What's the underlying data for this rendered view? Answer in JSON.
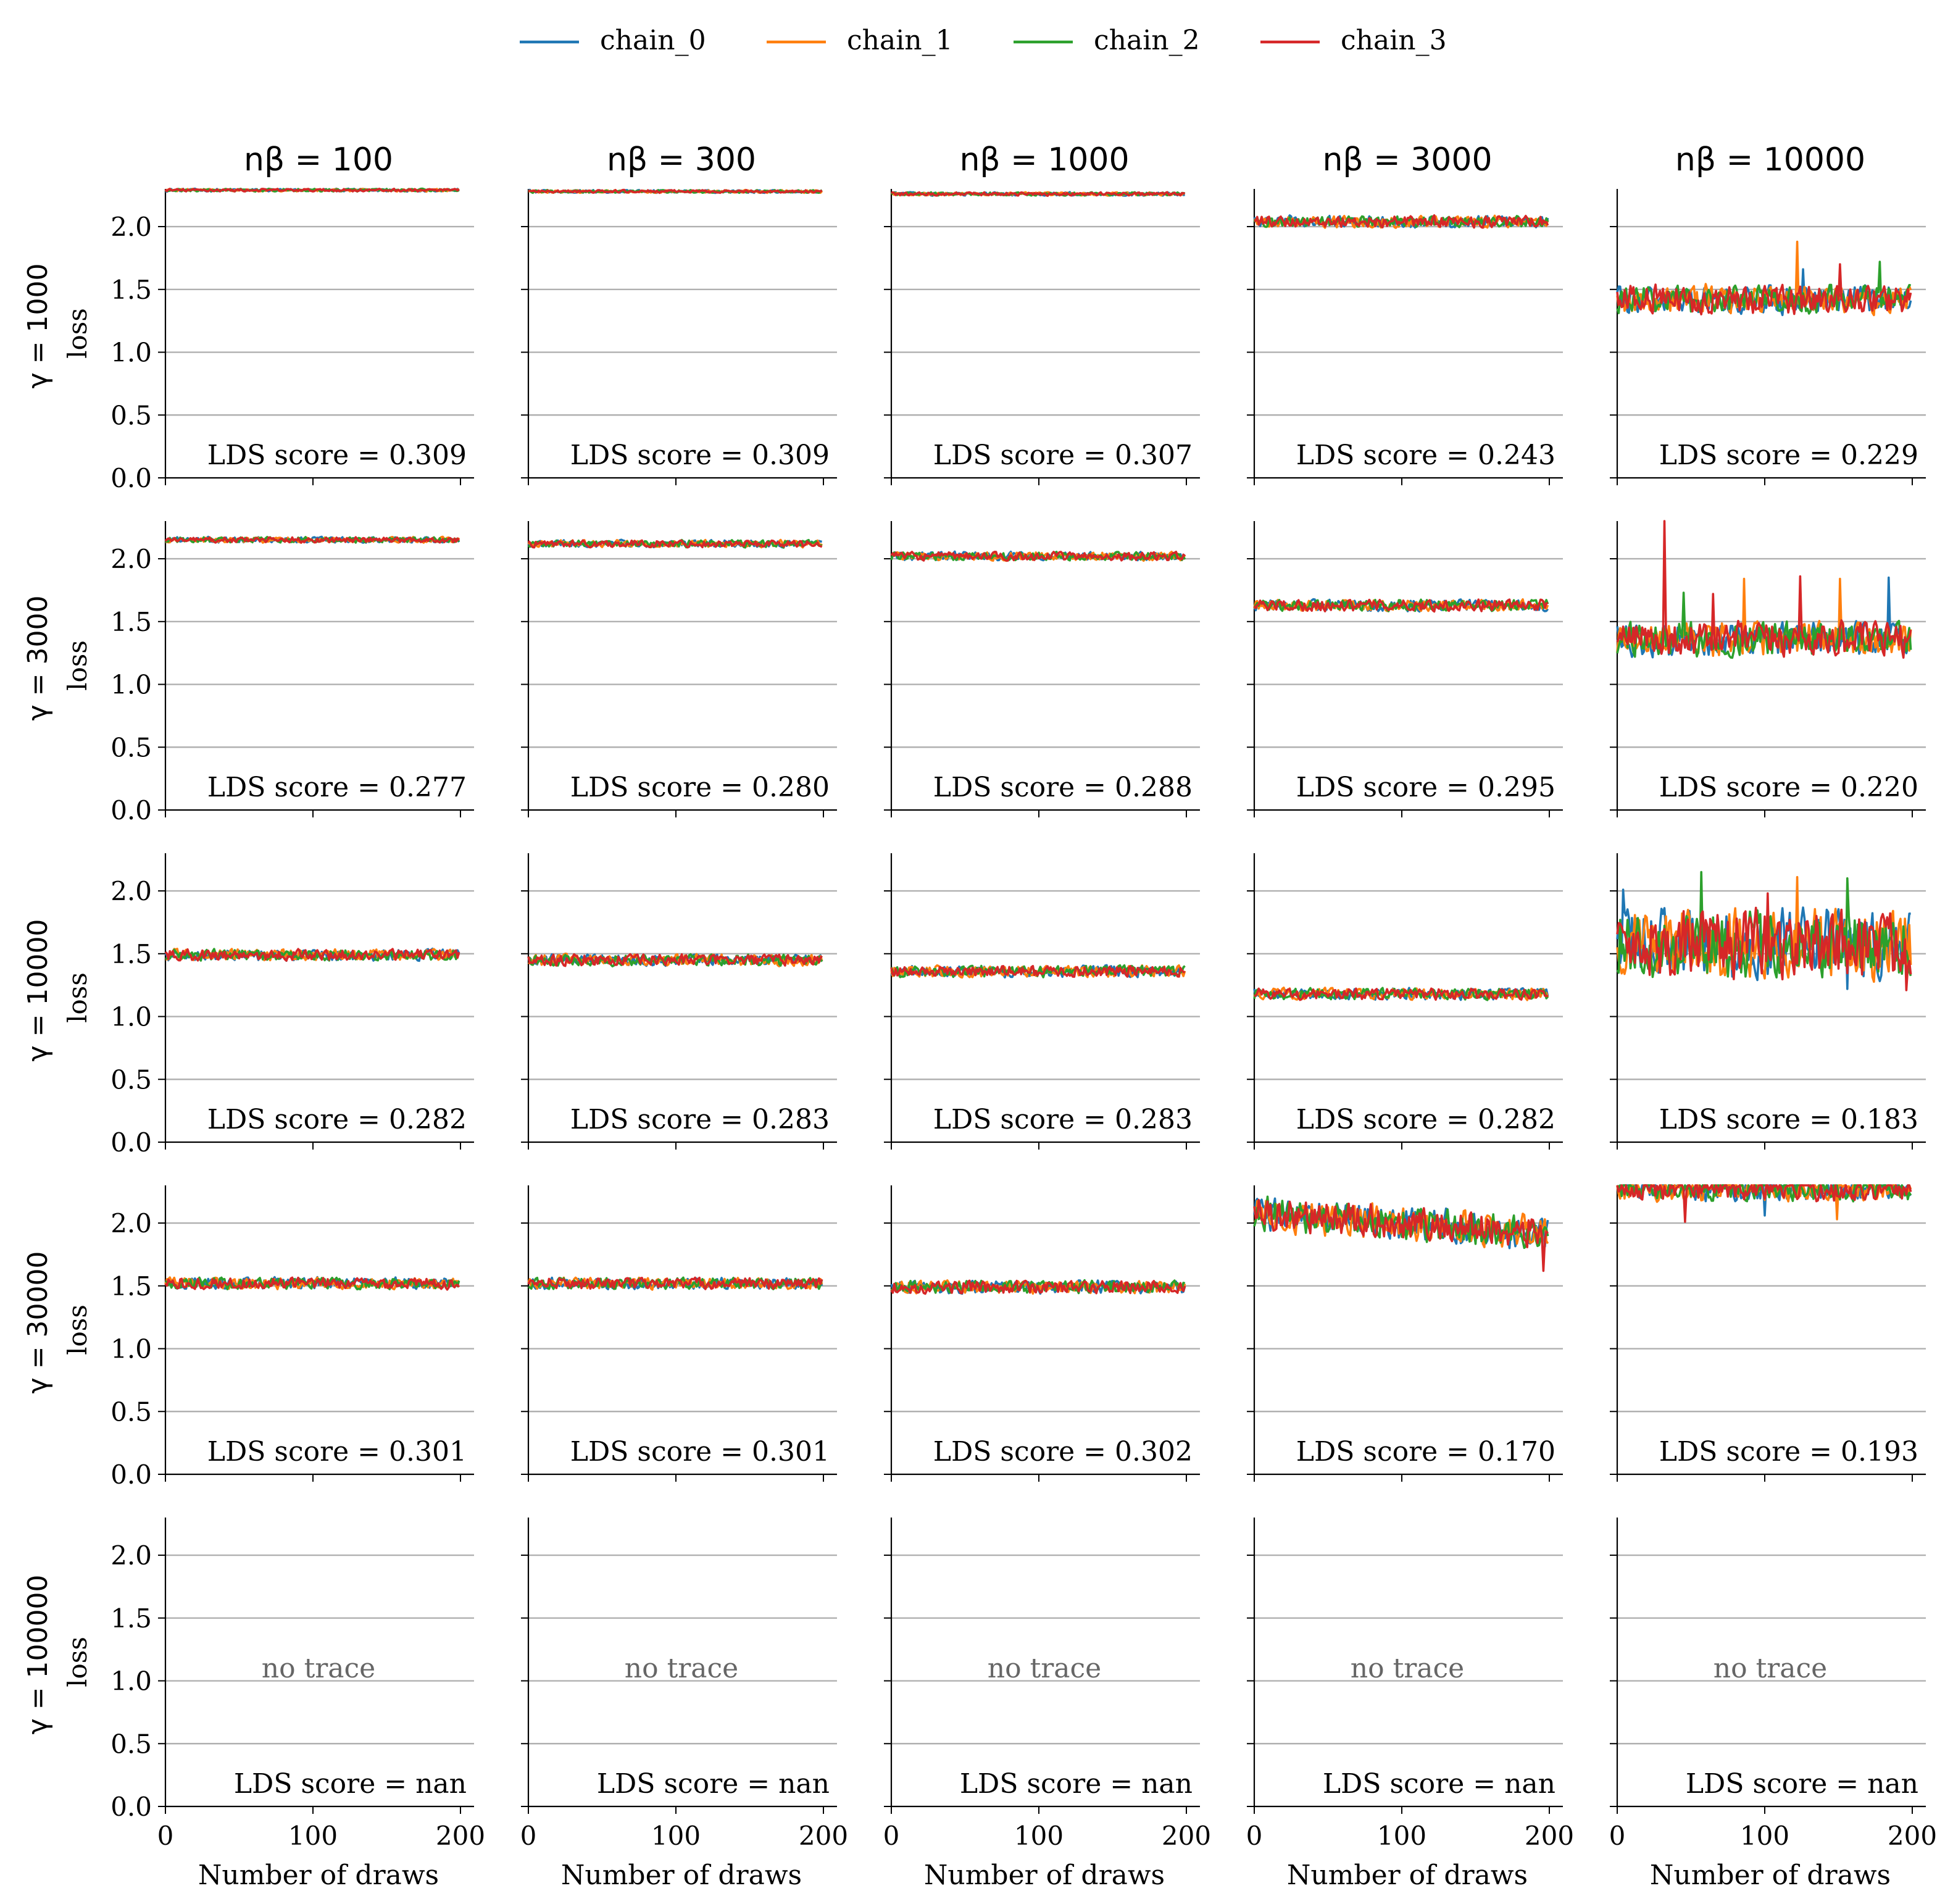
{
  "chart_data": {
    "type": "line",
    "layout": "small-multiples grid (5 rows x 5 columns)",
    "legend": {
      "placement": "top-center",
      "entries": [
        {
          "name": "chain_0",
          "color": "#1f77b4"
        },
        {
          "name": "chain_1",
          "color": "#ff7f0e"
        },
        {
          "name": "chain_2",
          "color": "#2ca02c"
        },
        {
          "name": "chain_3",
          "color": "#d62728"
        }
      ]
    },
    "column_titles": [
      "nβ = 100",
      "nβ = 300",
      "nβ = 1000",
      "nβ = 3000",
      "nβ = 10000"
    ],
    "row_titles": [
      "γ = 1000",
      "γ = 3000",
      "γ = 10000",
      "γ = 30000",
      "γ = 100000"
    ],
    "ylabel": "loss",
    "xlabel": "Number of draws",
    "xlim": [
      0,
      200
    ],
    "ylim": [
      0,
      2.3
    ],
    "xticks": [
      0,
      100,
      200
    ],
    "xtick_labels": [
      "0",
      "100",
      "200"
    ],
    "yticks": [
      0.0,
      0.5,
      1.0,
      1.5,
      2.0
    ],
    "ytick_labels": [
      "0.0",
      "0.5",
      "1.0",
      "1.5",
      "2.0"
    ],
    "grid": "horizontal",
    "draws_per_chain": 200,
    "no_trace_label": "no trace",
    "panels": [
      [
        {
          "lds": "LDS score = 0.309",
          "trace": {
            "mean": 2.29,
            "amp": 0.01
          }
        },
        {
          "lds": "LDS score = 0.309",
          "trace": {
            "mean": 2.28,
            "amp": 0.01
          }
        },
        {
          "lds": "LDS score = 0.307",
          "trace": {
            "mean": 2.26,
            "amp": 0.012
          }
        },
        {
          "lds": "LDS score = 0.243",
          "trace": {
            "mean": 2.04,
            "amp": 0.04
          }
        },
        {
          "lds": "LDS score = 0.229",
          "trace": {
            "mean": 1.42,
            "amp": 0.1,
            "spikes": [
              [
                122,
                1,
                1.88
              ],
              [
                178,
                2,
                1.72
              ],
              [
                151,
                3,
                1.7
              ],
              [
                126,
                0,
                1.66
              ]
            ]
          }
        }
      ],
      [
        {
          "lds": "LDS score = 0.277",
          "trace": {
            "mean": 2.15,
            "amp": 0.02
          }
        },
        {
          "lds": "LDS score = 0.280",
          "trace": {
            "mean": 2.12,
            "amp": 0.025
          }
        },
        {
          "lds": "LDS score = 0.288",
          "trace": {
            "mean": 2.02,
            "amp": 0.03
          }
        },
        {
          "lds": "LDS score = 0.295",
          "trace": {
            "mean": 1.63,
            "amp": 0.04
          }
        },
        {
          "lds": "LDS score = 0.220",
          "trace": {
            "mean": 1.36,
            "amp": 0.12,
            "spikes": [
              [
                32,
                3,
                2.3
              ],
              [
                86,
                1,
                1.84
              ],
              [
                124,
                3,
                1.86
              ],
              [
                151,
                1,
                1.84
              ],
              [
                184,
                0,
                1.85
              ],
              [
                45,
                2,
                1.73
              ],
              [
                65,
                3,
                1.72
              ]
            ]
          }
        }
      ],
      [
        {
          "lds": "LDS score = 0.282",
          "trace": {
            "mean": 1.49,
            "amp": 0.04
          }
        },
        {
          "lds": "LDS score = 0.283",
          "trace": {
            "mean": 1.45,
            "amp": 0.04
          }
        },
        {
          "lds": "LDS score = 0.283",
          "trace": {
            "mean": 1.36,
            "amp": 0.04
          }
        },
        {
          "lds": "LDS score = 0.282",
          "trace": {
            "mean": 1.18,
            "amp": 0.04
          }
        },
        {
          "lds": "LDS score = 0.183",
          "trace": {
            "mean": 1.58,
            "amp": 0.24,
            "spikes": [
              [
                4,
                0,
                2.01
              ],
              [
                57,
                2,
                2.15
              ],
              [
                122,
                1,
                2.11
              ],
              [
                156,
                2,
                2.1
              ],
              [
                102,
                3,
                1.98
              ],
              [
                156,
                0,
                1.22
              ],
              [
                196,
                3,
                1.21
              ]
            ]
          }
        }
      ],
      [
        {
          "lds": "LDS score = 0.301",
          "trace": {
            "mean": 1.52,
            "amp": 0.04
          }
        },
        {
          "lds": "LDS score = 0.301",
          "trace": {
            "mean": 1.52,
            "amp": 0.04
          }
        },
        {
          "lds": "LDS score = 0.302",
          "trace": {
            "mean": 1.49,
            "amp": 0.045
          }
        },
        {
          "lds": "LDS score = 0.170",
          "trace": {
            "mean": 2.08,
            "amp": 0.12,
            "slope": -0.0008,
            "cap": 2.3,
            "spikes": [
              [
                196,
                3,
                1.62
              ],
              [
                119,
                1,
                1.86
              ]
            ]
          }
        },
        {
          "lds": "LDS score = 0.193",
          "trace": {
            "mean": 2.28,
            "amp": 0.09,
            "cap": 2.3,
            "spikes": [
              [
                46,
                3,
                2.01
              ],
              [
                149,
                1,
                2.03
              ],
              [
                100,
                0,
                2.06
              ]
            ]
          }
        }
      ],
      [
        {
          "lds": "LDS score = nan",
          "trace": null
        },
        {
          "lds": "LDS score = nan",
          "trace": null
        },
        {
          "lds": "LDS score = nan",
          "trace": null
        },
        {
          "lds": "LDS score = nan",
          "trace": null
        },
        {
          "lds": "LDS score = nan",
          "trace": null
        }
      ]
    ]
  }
}
